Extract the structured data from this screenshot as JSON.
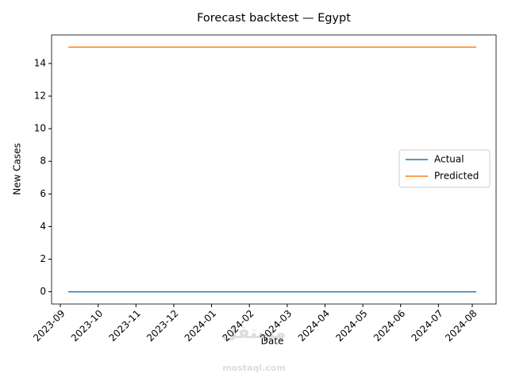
{
  "chart_data": {
    "type": "line",
    "title": "Forecast backtest — Egypt",
    "x_label": "Date",
    "y_label": "New Cases",
    "x": [
      "2023-09",
      "2023-10",
      "2023-11",
      "2023-12",
      "2024-01",
      "2024-02",
      "2024-03",
      "2024-04",
      "2024-05",
      "2024-06",
      "2024-07",
      "2024-08"
    ],
    "series": [
      {
        "name": "Actual",
        "color": "#1f77b4",
        "values": [
          0,
          0,
          0,
          0,
          0,
          0,
          0,
          0,
          0,
          0,
          0,
          0
        ]
      },
      {
        "name": "Predicted",
        "color": "#ff7f0e",
        "values": [
          15,
          15,
          15,
          15,
          15,
          15,
          15,
          15,
          15,
          15,
          15,
          15
        ]
      }
    ],
    "ylim": [
      -0.75,
      15.75
    ],
    "yticks": [
      0,
      2,
      4,
      6,
      8,
      10,
      12,
      14
    ],
    "grid": false,
    "legend": "center right",
    "watermark": [
      "مستقل",
      "mostaql.com"
    ]
  }
}
